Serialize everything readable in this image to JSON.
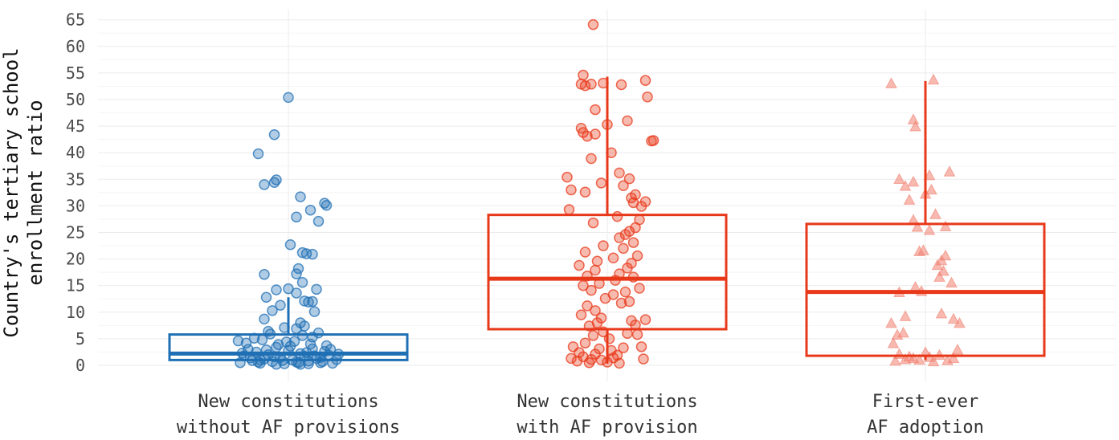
{
  "chart_data": {
    "type": "box",
    "ylabel_lines": [
      "Country's tertiary school",
      "enrollment ratio"
    ],
    "yticks": [
      0,
      5,
      10,
      15,
      20,
      25,
      30,
      35,
      40,
      45,
      50,
      55,
      60,
      65
    ],
    "ylim": [
      -3,
      67
    ],
    "grid": true,
    "categories": [
      {
        "lines": [
          "New constitutions",
          "without AF provisions"
        ]
      },
      {
        "lines": [
          "New constitutions",
          "with AF provision"
        ]
      },
      {
        "lines": [
          "First-ever",
          "AF adoption"
        ]
      }
    ],
    "series": [
      {
        "color": "#1f6fb4",
        "marker": "circle",
        "box": {
          "q1": 1.0,
          "median": 2.2,
          "q3": 5.8,
          "whisker_low": 0.3,
          "whisker_high": 12.8
        },
        "points": [
          [
            -0.24,
            0.5
          ],
          [
            -0.22,
            1.8
          ],
          [
            -0.2,
            3.0
          ],
          [
            -0.18,
            0.9
          ],
          [
            -0.16,
            2.5
          ],
          [
            -0.14,
            0.4
          ],
          [
            -0.12,
            1.2
          ],
          [
            -0.1,
            2.0
          ],
          [
            -0.08,
            0.7
          ],
          [
            -0.06,
            3.4
          ],
          [
            -0.04,
            1.5
          ],
          [
            -0.02,
            0.3
          ],
          [
            0.0,
            2.8
          ],
          [
            0.02,
            1.0
          ],
          [
            0.04,
            0.6
          ],
          [
            0.06,
            2.2
          ],
          [
            0.08,
            1.7
          ],
          [
            0.1,
            0.8
          ],
          [
            0.12,
            3.1
          ],
          [
            0.14,
            1.3
          ],
          [
            0.16,
            0.5
          ],
          [
            0.18,
            2.6
          ],
          [
            0.2,
            1.9
          ],
          [
            0.22,
            0.4
          ],
          [
            0.24,
            1.1
          ],
          [
            -0.23,
            2.3
          ],
          [
            -0.19,
            1.4
          ],
          [
            -0.15,
            0.6
          ],
          [
            -0.11,
            2.9
          ],
          [
            -0.07,
            1.6
          ],
          [
            -0.03,
            0.9
          ],
          [
            0.01,
            3.6
          ],
          [
            0.05,
            0.5
          ],
          [
            0.09,
            2.4
          ],
          [
            0.13,
            1.8
          ],
          [
            0.17,
            0.7
          ],
          [
            0.21,
            3.0
          ],
          [
            -0.21,
            4.2
          ],
          [
            -0.13,
            4.8
          ],
          [
            -0.05,
            3.9
          ],
          [
            0.03,
            4.5
          ],
          [
            0.11,
            4.0
          ],
          [
            0.19,
            3.7
          ],
          [
            -0.17,
            5.1
          ],
          [
            -0.09,
            5.9
          ],
          [
            -0.01,
            4.4
          ],
          [
            0.07,
            5.6
          ],
          [
            0.15,
            6.1
          ],
          [
            -0.1,
            6.4
          ],
          [
            0.04,
            6.9
          ],
          [
            -0.02,
            7.1
          ],
          [
            0.08,
            7.4
          ],
          [
            0.12,
            5.3
          ],
          [
            -0.25,
            4.6
          ],
          [
            0.25,
            2.1
          ],
          [
            -0.06,
            0.2
          ],
          [
            0.06,
            0.2
          ],
          [
            0.1,
            0.3
          ],
          [
            -0.14,
            1.0
          ],
          [
            0.16,
            1.5
          ],
          [
            0.06,
            8.0
          ],
          [
            -0.12,
            8.7
          ],
          [
            0.13,
            10.1
          ],
          [
            -0.08,
            10.3
          ],
          [
            -0.04,
            11.3
          ],
          [
            0.1,
            11.9
          ],
          [
            0.08,
            12.1
          ],
          [
            0.12,
            12.0
          ],
          [
            -0.11,
            12.8
          ],
          [
            0.04,
            13.6
          ],
          [
            -0.06,
            14.2
          ],
          [
            0.0,
            14.4
          ],
          [
            0.14,
            14.3
          ],
          [
            0.07,
            15.6
          ],
          [
            -0.12,
            17.1
          ],
          [
            0.04,
            17.2
          ],
          [
            0.05,
            18.2
          ],
          [
            0.07,
            21.2
          ],
          [
            0.12,
            20.9
          ],
          [
            0.09,
            21.0
          ],
          [
            0.01,
            22.7
          ],
          [
            0.15,
            27.1
          ],
          [
            0.04,
            27.9
          ],
          [
            0.11,
            29.2
          ],
          [
            0.19,
            30.1
          ],
          [
            0.18,
            30.5
          ],
          [
            0.06,
            31.7
          ],
          [
            -0.12,
            34.0
          ],
          [
            -0.07,
            34.4
          ],
          [
            -0.06,
            34.9
          ],
          [
            -0.15,
            39.8
          ],
          [
            -0.07,
            43.4
          ],
          [
            0.0,
            50.4
          ]
        ]
      },
      {
        "color": "#e8381a",
        "marker": "circle",
        "box": {
          "q1": 6.8,
          "median": 16.3,
          "q3": 28.3,
          "whisker_low": 0.3,
          "whisker_high": 54.3
        },
        "points": [
          [
            -0.18,
            1.3
          ],
          [
            -0.15,
            0.8
          ],
          [
            -0.12,
            1.6
          ],
          [
            -0.09,
            0.5
          ],
          [
            -0.06,
            2.1
          ],
          [
            -0.03,
            1.0
          ],
          [
            0.0,
            0.6
          ],
          [
            0.03,
            1.4
          ],
          [
            0.06,
            0.4
          ],
          [
            -0.14,
            2.4
          ],
          [
            -0.08,
            1.1
          ],
          [
            0.02,
            2.8
          ],
          [
            0.05,
            1.9
          ],
          [
            -0.17,
            3.5
          ],
          [
            -0.11,
            4.2
          ],
          [
            -0.04,
            3.1
          ],
          [
            0.01,
            5.0
          ],
          [
            -0.07,
            5.6
          ],
          [
            -0.02,
            6.3
          ],
          [
            -0.09,
            7.4
          ],
          [
            -0.05,
            8.0
          ],
          [
            -0.03,
            8.9
          ],
          [
            0.08,
            3.3
          ],
          [
            0.1,
            6.0
          ],
          [
            0.12,
            8.4
          ],
          [
            0.14,
            7.6
          ],
          [
            0.15,
            5.8
          ],
          [
            0.17,
            3.5
          ],
          [
            0.18,
            1.2
          ],
          [
            0.19,
            8.6
          ],
          [
            -0.13,
            9.5
          ],
          [
            -0.06,
            10.3
          ],
          [
            -0.1,
            11.2
          ],
          [
            0.07,
            11.7
          ],
          [
            0.11,
            12.0
          ],
          [
            -0.01,
            12.6
          ],
          [
            0.03,
            13.3
          ],
          [
            0.09,
            13.8
          ],
          [
            -0.08,
            14.1
          ],
          [
            0.16,
            14.5
          ],
          [
            -0.12,
            15.0
          ],
          [
            -0.04,
            15.4
          ],
          [
            0.04,
            16.0
          ],
          [
            0.13,
            16.6
          ],
          [
            -0.1,
            16.8
          ],
          [
            0.06,
            17.2
          ],
          [
            -0.06,
            17.9
          ],
          [
            0.1,
            18.3
          ],
          [
            -0.14,
            18.8
          ],
          [
            0.12,
            19.2
          ],
          [
            -0.05,
            19.6
          ],
          [
            0.03,
            20.2
          ],
          [
            0.15,
            20.6
          ],
          [
            -0.11,
            21.3
          ],
          [
            0.08,
            22.0
          ],
          [
            -0.02,
            22.5
          ],
          [
            0.13,
            23.1
          ],
          [
            0.06,
            24.0
          ],
          [
            0.09,
            24.6
          ],
          [
            0.11,
            25.2
          ],
          [
            0.14,
            25.9
          ],
          [
            -0.07,
            26.8
          ],
          [
            0.16,
            27.4
          ],
          [
            0.05,
            28.0
          ],
          [
            -0.19,
            29.3
          ],
          [
            0.17,
            29.9
          ],
          [
            0.13,
            30.6
          ],
          [
            0.19,
            30.8
          ],
          [
            0.12,
            31.5
          ],
          [
            0.14,
            32.1
          ],
          [
            -0.11,
            32.6
          ],
          [
            -0.18,
            33.0
          ],
          [
            0.08,
            33.8
          ],
          [
            -0.03,
            34.3
          ],
          [
            0.11,
            35.1
          ],
          [
            -0.2,
            35.4
          ],
          [
            0.06,
            36.2
          ],
          [
            -0.08,
            38.9
          ],
          [
            0.02,
            40.0
          ],
          [
            0.22,
            42.2
          ],
          [
            0.23,
            42.3
          ],
          [
            -0.1,
            43.1
          ],
          [
            -0.06,
            43.5
          ],
          [
            -0.12,
            43.8
          ],
          [
            -0.13,
            44.6
          ],
          [
            0.0,
            45.3
          ],
          [
            0.1,
            46.0
          ],
          [
            -0.06,
            48.1
          ],
          [
            0.2,
            50.5
          ],
          [
            -0.11,
            52.6
          ],
          [
            -0.08,
            52.9
          ],
          [
            0.07,
            52.8
          ],
          [
            -0.13,
            52.9
          ],
          [
            -0.02,
            53.1
          ],
          [
            0.19,
            53.6
          ],
          [
            -0.12,
            54.6
          ],
          [
            -0.07,
            64.1
          ]
        ]
      },
      {
        "color": "#f08070",
        "marker": "triangle",
        "box": {
          "q1": 1.8,
          "median": 13.8,
          "q3": 26.6,
          "whisker_low": 1.0,
          "whisker_high": 53.5
        },
        "points": [
          [
            -0.15,
            0.7
          ],
          [
            -0.1,
            1.0
          ],
          [
            -0.06,
            1.2
          ],
          [
            -0.03,
            0.9
          ],
          [
            0.02,
            1.4
          ],
          [
            0.04,
            0.6
          ],
          [
            0.07,
            1.8
          ],
          [
            0.11,
            0.8
          ],
          [
            0.14,
            1.2
          ],
          [
            0.16,
            2.8
          ],
          [
            -0.13,
            2.0
          ],
          [
            -0.08,
            1.5
          ],
          [
            0.0,
            2.3
          ],
          [
            -0.16,
            4.0
          ],
          [
            -0.14,
            5.6
          ],
          [
            -0.11,
            6.0
          ],
          [
            -0.17,
            7.8
          ],
          [
            0.17,
            7.8
          ],
          [
            0.14,
            8.6
          ],
          [
            0.08,
            9.6
          ],
          [
            -0.1,
            9.1
          ],
          [
            -0.02,
            13.8
          ],
          [
            -0.05,
            14.6
          ],
          [
            -0.13,
            13.6
          ],
          [
            0.13,
            15.4
          ],
          [
            0.07,
            16.5
          ],
          [
            0.09,
            17.6
          ],
          [
            0.06,
            18.7
          ],
          [
            0.08,
            19.6
          ],
          [
            0.1,
            20.5
          ],
          [
            -0.03,
            21.3
          ],
          [
            -0.01,
            21.5
          ],
          [
            0.02,
            25.3
          ],
          [
            -0.04,
            25.9
          ],
          [
            -0.06,
            27.2
          ],
          [
            0.1,
            26.0
          ],
          [
            0.05,
            28.3
          ],
          [
            -0.08,
            31.0
          ],
          [
            0.0,
            32.1
          ],
          [
            0.03,
            32.9
          ],
          [
            -0.1,
            33.6
          ],
          [
            -0.06,
            34.4
          ],
          [
            -0.13,
            34.9
          ],
          [
            0.02,
            35.6
          ],
          [
            0.12,
            36.3
          ],
          [
            -0.05,
            44.8
          ],
          [
            -0.06,
            46.1
          ],
          [
            -0.17,
            52.9
          ],
          [
            0.04,
            53.6
          ]
        ]
      }
    ]
  }
}
